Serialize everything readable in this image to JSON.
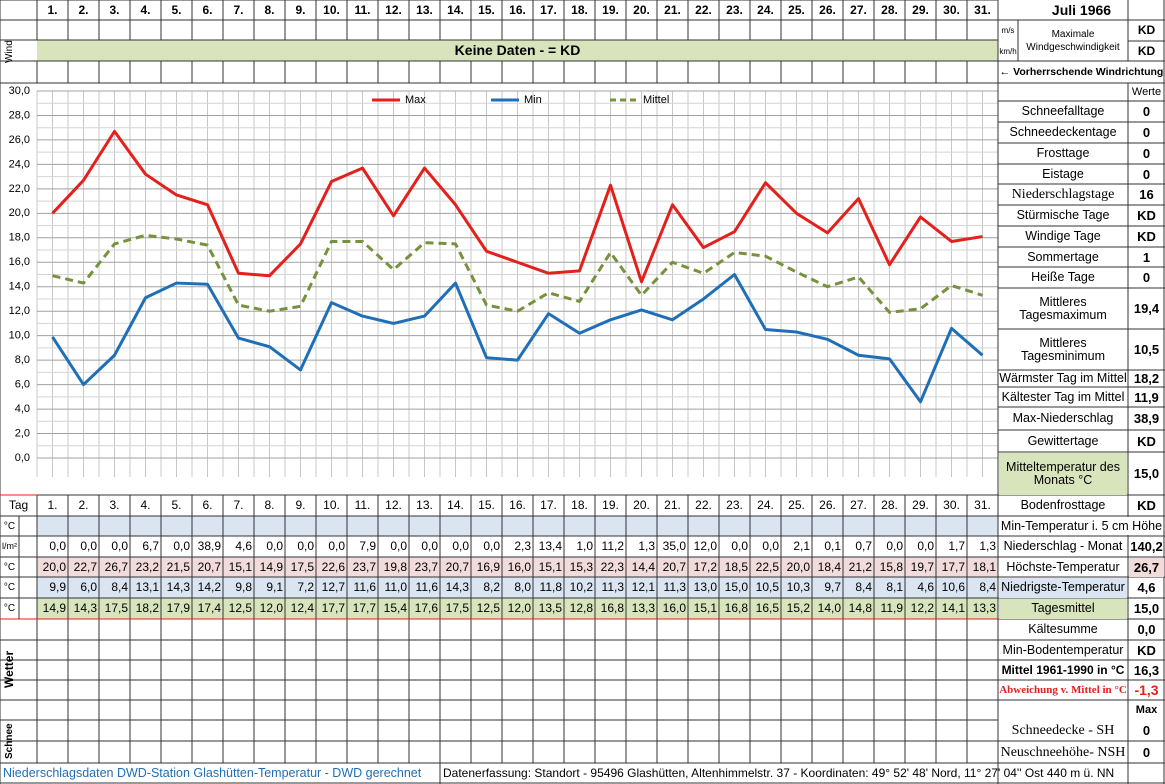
{
  "header": {
    "title": "Juli 1966",
    "wind_label": "Wind",
    "no_data": "Keine Daten -  = KD",
    "unit_ms": "m/s",
    "unit_kmh": "km/h",
    "max_wind": "Maximale Windgeschwindigkeit",
    "max_wind_ms": "KD",
    "max_wind_kmh": "KD",
    "wind_direction": "← Vorherrschende Windrichtung"
  },
  "chart_data": {
    "type": "line",
    "categories": [
      "1.",
      "2.",
      "3.",
      "4.",
      "5.",
      "6.",
      "7.",
      "8.",
      "9.",
      "10.",
      "11.",
      "12.",
      "13.",
      "14.",
      "15.",
      "16.",
      "17.",
      "18.",
      "19.",
      "20.",
      "21.",
      "22.",
      "23.",
      "24.",
      "25.",
      "26.",
      "27.",
      "28.",
      "29.",
      "30.",
      "31."
    ],
    "series": [
      {
        "name": "Max",
        "color": "#e3201b",
        "values": [
          20.0,
          22.7,
          26.7,
          23.2,
          21.5,
          20.7,
          15.1,
          14.9,
          17.5,
          22.6,
          23.7,
          19.8,
          23.7,
          20.7,
          16.9,
          16.0,
          15.1,
          15.3,
          22.3,
          14.4,
          20.7,
          17.2,
          18.5,
          22.5,
          20.0,
          18.4,
          21.2,
          15.8,
          19.7,
          17.7,
          18.1
        ],
        "value_labels": [
          "20,0",
          "22,7",
          "26,7",
          "23,2",
          "21,5",
          "20,7",
          "15,1",
          "14,9",
          "17,5",
          "22,6",
          "23,7",
          "19,8",
          "23,7",
          "20,7",
          "16,9",
          "16,0",
          "15,1",
          "15,3",
          "22,3",
          "14,4",
          "20,7",
          "17,2",
          "18,5",
          "22,5",
          "20,0",
          "18,4",
          "21,2",
          "15,8",
          "19,7",
          "17,7",
          "18,1"
        ]
      },
      {
        "name": "Min",
        "color": "#1f6fb8",
        "values": [
          9.9,
          6.0,
          8.4,
          13.1,
          14.3,
          14.2,
          9.8,
          9.1,
          7.2,
          12.7,
          11.6,
          11.0,
          11.6,
          14.3,
          8.2,
          8.0,
          11.8,
          10.2,
          11.3,
          12.1,
          11.3,
          13.0,
          15.0,
          10.5,
          10.3,
          9.7,
          8.4,
          8.1,
          4.6,
          10.6,
          8.4
        ],
        "value_labels": [
          "9,9",
          "6,0",
          "8,4",
          "13,1",
          "14,3",
          "14,2",
          "9,8",
          "9,1",
          "7,2",
          "12,7",
          "11,6",
          "11,0",
          "11,6",
          "14,3",
          "8,2",
          "8,0",
          "11,8",
          "10,2",
          "11,3",
          "12,1",
          "11,3",
          "13,0",
          "15,0",
          "10,5",
          "10,3",
          "9,7",
          "8,4",
          "8,1",
          "4,6",
          "10,6",
          "8,4"
        ]
      },
      {
        "name": "Mittel",
        "color": "#76923c",
        "dashed": true,
        "values": [
          14.9,
          14.3,
          17.5,
          18.2,
          17.9,
          17.4,
          12.5,
          12.0,
          12.4,
          17.7,
          17.7,
          15.4,
          17.6,
          17.5,
          12.5,
          12.0,
          13.5,
          12.8,
          16.8,
          13.3,
          16.0,
          15.1,
          16.8,
          16.5,
          15.2,
          14.0,
          14.8,
          11.9,
          12.2,
          14.1,
          13.3
        ],
        "value_labels": [
          "14,9",
          "14,3",
          "17,5",
          "18,2",
          "17,9",
          "17,4",
          "12,5",
          "12,0",
          "12,4",
          "17,7",
          "17,7",
          "15,4",
          "17,6",
          "17,5",
          "12,5",
          "12,0",
          "13,5",
          "12,8",
          "16,8",
          "13,3",
          "16,0",
          "15,1",
          "16,8",
          "16,5",
          "15,2",
          "14,0",
          "14,8",
          "11,9",
          "12,2",
          "14,1",
          "13,3"
        ]
      }
    ],
    "ylim": [
      0,
      30
    ],
    "yticks": [
      {
        "value": 0,
        "label": "0,0"
      },
      {
        "value": 2,
        "label": "2,0"
      },
      {
        "value": 4,
        "label": "4,0"
      },
      {
        "value": 6,
        "label": "6,0"
      },
      {
        "value": 8,
        "label": "8,0"
      },
      {
        "value": 10,
        "label": "10,0"
      },
      {
        "value": 12,
        "label": "12,0"
      },
      {
        "value": 14,
        "label": "14,0"
      },
      {
        "value": 16,
        "label": "16,0"
      },
      {
        "value": 18,
        "label": "18,0"
      },
      {
        "value": 20,
        "label": "20,0"
      },
      {
        "value": 22,
        "label": "22,0"
      },
      {
        "value": 24,
        "label": "24,0"
      },
      {
        "value": 26,
        "label": "26,0"
      },
      {
        "value": 28,
        "label": "28,0"
      },
      {
        "value": 30,
        "label": "30,0"
      }
    ],
    "grid": true
  },
  "table": {
    "day_label": "Tag",
    "unit_c": "°C",
    "unit_lm2": "l/m²",
    "precipitation": [
      "0,0",
      "0,0",
      "0,0",
      "6,7",
      "0,0",
      "38,9",
      "4,6",
      "0,0",
      "0,0",
      "0,0",
      "7,9",
      "0,0",
      "0,0",
      "0,0",
      "0,0",
      "2,3",
      "13,4",
      "1,0",
      "11,2",
      "1,3",
      "35,0",
      "12,0",
      "0,0",
      "0,0",
      "2,1",
      "0,1",
      "0,7",
      "0,0",
      "0,0",
      "1,7",
      "1,3"
    ],
    "weather_label": "Wetter",
    "snow_label": "Schnee"
  },
  "stats": {
    "header": "Werte",
    "max_header": "Max",
    "rows": [
      {
        "label": "Schneefalltage",
        "value": "0"
      },
      {
        "label": "Schneedeckentage",
        "value": "0"
      },
      {
        "label": "Frosttage",
        "value": "0"
      },
      {
        "label": "Eistage",
        "value": "0"
      },
      {
        "label": "Niederschlagstage",
        "value": "16"
      },
      {
        "label": "Stürmische Tage",
        "value": "KD"
      },
      {
        "label": "Windige Tage",
        "value": "KD"
      },
      {
        "label": "Sommertage",
        "value": "1"
      },
      {
        "label": "Heiße Tage",
        "value": "0"
      },
      {
        "label": "Mittleres Tagesmaximum",
        "value": "19,4"
      },
      {
        "label": "Mittleres Tagesminimum",
        "value": "10,5"
      },
      {
        "label": "Wärmster Tag im Mittel",
        "value": "18,2"
      },
      {
        "label": "Kältester Tag im Mittel",
        "value": "11,9"
      },
      {
        "label": "Max-Niederschlag",
        "value": "38,9"
      },
      {
        "label": "Gewittertage",
        "value": "KD"
      },
      {
        "label": "Mitteltemperatur des Monats °C",
        "value": "15,0"
      },
      {
        "label": "Bodenfrosttage",
        "value": "KD"
      },
      {
        "label": "Min-Temperatur i. 5 cm Höhe"
      },
      {
        "label": "Niederschlag - Monat",
        "value": "140,2"
      },
      {
        "label": "Höchste-Temperatur",
        "value": "26,7"
      },
      {
        "label": "Niedrigste-Temperatur",
        "value": "4,6"
      },
      {
        "label": "Tagesmittel",
        "value": "15,0"
      },
      {
        "label": "Kältesumme",
        "value": "0,0"
      },
      {
        "label": "Min-Bodentemperatur",
        "value": "KD"
      },
      {
        "label": "Mittel 1961-1990 in °C",
        "value": "16,3"
      },
      {
        "label": "Abweichung v. Mittel in °C",
        "value": "-1,3"
      },
      {
        "label": "Schneedecke -  SH",
        "value": "0"
      },
      {
        "label": "Neuschneehöhe- NSH",
        "value": "0"
      }
    ]
  },
  "footer": {
    "left": "Niederschlagsdaten DWD-Station Glashütten-Temperatur -  DWD gerechnet",
    "right": "Datenerfassung: Standort -  95496  Glashütten, Altenhimmelstr. 37 - Koordinaten:  49° 52' 48' Nord,  11° 27' 04'' Ost  440 m ü. NN"
  }
}
